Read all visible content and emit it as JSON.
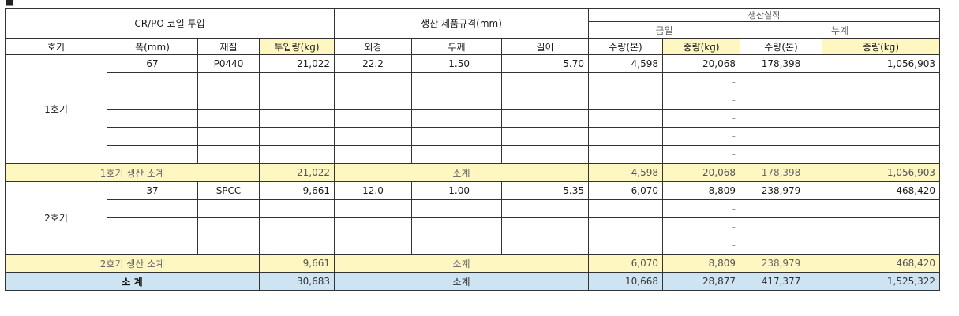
{
  "header": {
    "group_input": "CR/PO 코일 투입",
    "group_spec": "생산 제품규격(mm)",
    "group_result": "생산실적",
    "sub_cut": "금일",
    "sub_cum": "누계",
    "col_unit": "호기",
    "col_width": "폭(mm)",
    "col_material": "재질",
    "col_input_qty": "투입량(kg)",
    "col_od": "외경",
    "col_thk": "두께",
    "col_len": "길이",
    "col_today_count": "수량(본)",
    "col_today_weight": "중량(kg)",
    "col_cum_count": "수량(본)",
    "col_cum_weight": "중량(kg)"
  },
  "unit1": {
    "label": "1호기",
    "row": {
      "width": "67",
      "material": "P0440",
      "input": "21,022",
      "od": "22.2",
      "thk": "1.50",
      "len": "5.70",
      "today_count": "4,598",
      "today_weight": "20,068",
      "cum_count": "178,398",
      "cum_weight": "1,056,903"
    },
    "dash": "-",
    "subtotal": {
      "label": "1호기 생산 소계",
      "input": "21,022",
      "spec": "소계",
      "today_count": "4,598",
      "today_weight": "20,068",
      "cum_count": "178,398",
      "cum_weight": "1,056,903"
    }
  },
  "unit2": {
    "label": "2호기",
    "row": {
      "width": "37",
      "material": "SPCC",
      "input": "9,661",
      "od": "12.0",
      "thk": "1.00",
      "len": "5.35",
      "today_count": "6,070",
      "today_weight": "8,809",
      "cum_count": "238,979",
      "cum_weight": "468,420"
    },
    "dash": "-",
    "subtotal": {
      "label": "2호기 생산 소계",
      "input": "9,661",
      "spec": "소계",
      "today_count": "6,070",
      "today_weight": "8,809",
      "cum_count": "238,979",
      "cum_weight": "468,420"
    }
  },
  "total": {
    "label": "소 계",
    "input": "30,683",
    "spec": "소계",
    "today_count": "10,668",
    "today_weight": "28,877",
    "cum_count": "417,377",
    "cum_weight": "1,525,322"
  }
}
